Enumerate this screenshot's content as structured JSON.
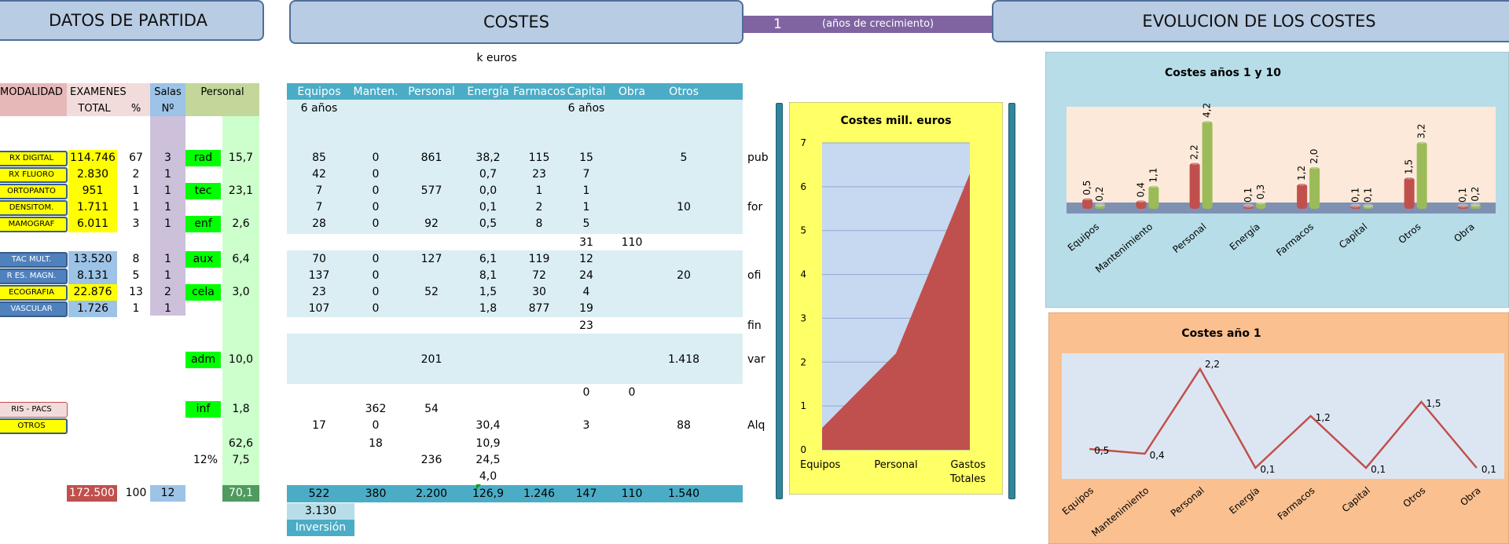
{
  "headers": {
    "datos": "DATOS  DE PARTIDA",
    "costes": "COSTES",
    "years_value": "1",
    "years_label": "(años de crecimiento)",
    "evolucion": "EVOLUCION DE LOS COSTES",
    "keuros": "k euros"
  },
  "left_table": {
    "col_modalidad": "MODALIDAD",
    "col_examenes": "EXAMENES",
    "col_total": "TOTAL",
    "col_pct": "%",
    "col_salas": "Salas",
    "col_n": "Nº",
    "col_personal": "Personal",
    "rows": [
      {
        "mod": "RX DIGITAL",
        "total": "114.746",
        "pct": "67",
        "salas": "3",
        "ptype": "rad",
        "pval": "15,7"
      },
      {
        "mod": "RX FLUORO",
        "total": "2.830",
        "pct": "2",
        "salas": "1",
        "ptype": "",
        "pval": ""
      },
      {
        "mod": "ORTOPANTO",
        "total": "951",
        "pct": "1",
        "salas": "1",
        "ptype": "tec",
        "pval": "23,1"
      },
      {
        "mod": "DENSITOM.",
        "total": "1.711",
        "pct": "1",
        "salas": "1",
        "ptype": "",
        "pval": ""
      },
      {
        "mod": "MAMOGRAF",
        "total": "6.011",
        "pct": "3",
        "salas": "1",
        "ptype": "enf",
        "pval": "2,6"
      },
      {
        "mod": "TAC MULT.",
        "total": "13.520",
        "pct": "8",
        "salas": "1",
        "ptype": "aux",
        "pval": "6,4"
      },
      {
        "mod": "R ES. MAGN.",
        "total": "8.131",
        "pct": "5",
        "salas": "1",
        "ptype": "",
        "pval": ""
      },
      {
        "mod": "ECOGRAFIA",
        "total": "22.876",
        "pct": "13",
        "salas": "2",
        "ptype": "cela",
        "pval": "3,0"
      },
      {
        "mod": "VASCULAR",
        "total": "1.726",
        "pct": "1",
        "salas": "1",
        "ptype": "",
        "pval": ""
      }
    ],
    "adm_label": "adm",
    "adm_val": "10,0",
    "ris": "RIS - PACS",
    "otros": "OTROS",
    "inf_label": "inf",
    "inf_val": "1,8",
    "pers_total1": "62,6",
    "pct12": "12%",
    "pers_12": "7,5",
    "total_exams": "172.500",
    "total_pct": "100",
    "total_salas": "12",
    "total_pers": "70,1"
  },
  "costes": {
    "cols": [
      "Equipos",
      "Manten.",
      "Personal",
      "Energía",
      "Farmacos",
      "Capital",
      "Obra",
      "Otros"
    ],
    "sub6": "6 años",
    "sub6b": "6 años",
    "rows": [
      [
        "85",
        "0",
        "861",
        "38,2",
        "115",
        "15",
        "",
        "5"
      ],
      [
        "42",
        "0",
        "",
        "0,7",
        "23",
        "7",
        "",
        ""
      ],
      [
        "7",
        "0",
        "577",
        "0,0",
        "1",
        "1",
        "",
        ""
      ],
      [
        "7",
        "0",
        "",
        "0,1",
        "2",
        "1",
        "",
        "10"
      ],
      [
        "28",
        "0",
        "92",
        "0,5",
        "8",
        "5",
        "",
        ""
      ],
      [
        "",
        "",
        "",
        "",
        "",
        "31",
        "110",
        ""
      ],
      [
        "70",
        "0",
        "127",
        "6,1",
        "119",
        "12",
        "",
        ""
      ],
      [
        "137",
        "0",
        "",
        "8,1",
        "72",
        "24",
        "",
        "20"
      ],
      [
        "23",
        "0",
        "52",
        "1,5",
        "30",
        "4",
        "",
        ""
      ],
      [
        "107",
        "0",
        "",
        "1,8",
        "877",
        "19",
        "",
        ""
      ],
      [
        "",
        "",
        "",
        "",
        "",
        "23",
        "",
        ""
      ]
    ],
    "row_labels": [
      "pub",
      "",
      "",
      "for",
      "",
      "",
      "",
      "ofi",
      "",
      "",
      "fin"
    ],
    "var_personal": "201",
    "var_otros": "1.418",
    "var_label": "var",
    "zero_capital": "0",
    "zero_obra": "0",
    "ris_manten": "362",
    "ris_personal": "54",
    "otros_row": [
      "17",
      "0",
      "",
      "30,4",
      "",
      "3",
      "",
      "88"
    ],
    "alq_label": "Alq",
    "extra_manten": "18",
    "extra_energia1": "10,9",
    "extra_personal": "236",
    "extra_energia2": "24,5",
    "extra_energia3": "4,0",
    "totals": [
      "522",
      "380",
      "2.200",
      "126,9",
      "1.246",
      "147",
      "110",
      "1.540"
    ],
    "grand_total": "3.130",
    "inversion": "Inversión"
  },
  "chart_data": [
    {
      "type": "area",
      "title": "Costes mill. euros",
      "categories": [
        "Equipos",
        "Personal",
        "Gastos Totales"
      ],
      "series": [
        {
          "values": [
            0.5,
            2.2,
            6.3
          ]
        }
      ],
      "ylim": [
        0,
        7
      ],
      "yticks": [
        "0",
        "1",
        "2",
        "3",
        "4",
        "5",
        "6",
        "7"
      ],
      "colors": {
        "bg": "#ffff66",
        "plot": "#c6d9f1",
        "area": "#c0504d"
      }
    },
    {
      "type": "bar",
      "title": "Costes años 1 y 10",
      "categories": [
        "Equipos",
        "Mantenimiento",
        "Personal",
        "Energía",
        "Farmacos",
        "Capital",
        "Otros",
        "Obra"
      ],
      "series": [
        {
          "values": [
            0.5,
            0.4,
            2.2,
            0.1,
            1.2,
            0.1,
            1.5,
            0.1
          ],
          "labels": [
            "0,5",
            "0,4",
            "2,2",
            "0,1",
            "1,2",
            "0,1",
            "1,5",
            "0,1"
          ]
        },
        {
          "values": [
            0.2,
            1.1,
            4.2,
            0.3,
            2.0,
            0.1,
            3.2,
            0.2
          ],
          "labels": [
            "0,2",
            "1,1",
            "4,2",
            "0,3",
            "2,0",
            "0,1",
            "3,2",
            "0,2"
          ]
        }
      ],
      "colors": {
        "s1": "#c0504d",
        "s2": "#9bbb59",
        "bg": "#b7dde8",
        "plot": "#fde9d9"
      }
    },
    {
      "type": "line",
      "title": "Costes año 1",
      "categories": [
        "Equipos",
        "Mantenimiento",
        "Personal",
        "Energía",
        "Farmacos",
        "Capital",
        "Otros",
        "Obra"
      ],
      "series": [
        {
          "values": [
            0.5,
            0.4,
            2.2,
            0.1,
            1.2,
            0.1,
            1.5,
            0.1
          ],
          "labels": [
            "0,5",
            "0,4",
            "2,2",
            "0,1",
            "1,2",
            "0,1",
            "1,5",
            "0,1"
          ]
        }
      ],
      "colors": {
        "line": "#c0504d",
        "bg": "#fac090",
        "plot": "#dce6f2"
      }
    }
  ]
}
